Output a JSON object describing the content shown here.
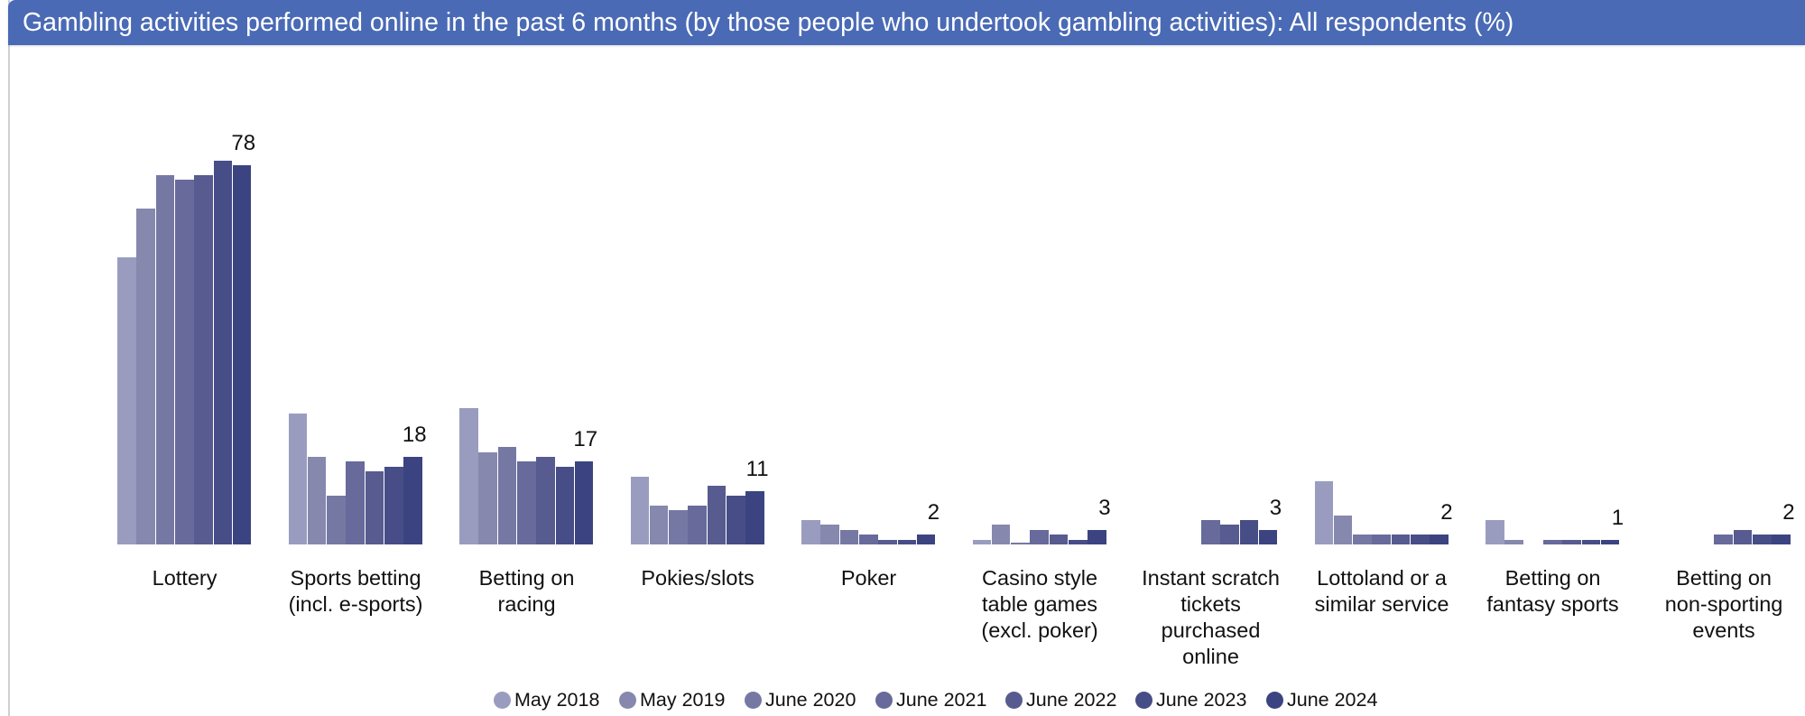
{
  "header": {
    "title": "Gambling activities performed online in the past 6 months (by those people who undertook gambling activities): All respondents (%)",
    "color": "#4a6ab5"
  },
  "legend": {
    "items": [
      {
        "label": "May 2018",
        "color": "#9a9cbf"
      },
      {
        "label": "May 2019",
        "color": "#8688ae"
      },
      {
        "label": "June 2020",
        "color": "#7678a4"
      },
      {
        "label": "June 2021",
        "color": "#676a9a"
      },
      {
        "label": "June 2022",
        "color": "#575b8f"
      },
      {
        "label": "June 2023",
        "color": "#474d86"
      },
      {
        "label": "June 2024",
        "color": "#3b4480"
      }
    ]
  },
  "chart_data": {
    "type": "bar",
    "title": "Gambling activities performed online in the past 6 months (by those people who undertook gambling activities): All respondents (%)",
    "xlabel": "",
    "ylabel": "%",
    "ylim": [
      0,
      80
    ],
    "grid": false,
    "legend_position": "bottom",
    "categories": [
      "Lottery",
      "Sports betting (incl. e-sports)",
      "Betting on racing",
      "Pokies/slots",
      "Poker",
      "Casino style table games (excl. poker)",
      "Instant scratch tickets purchased online",
      "Lottoland or a similar service",
      "Betting on fantasy sports",
      "Betting on non-sporting events"
    ],
    "category_lines": [
      [
        "Lottery"
      ],
      [
        "Sports betting",
        "(incl. e-sports)"
      ],
      [
        "Betting on",
        "racing"
      ],
      [
        "Pokies/slots"
      ],
      [
        "Poker"
      ],
      [
        "Casino style",
        "table games",
        "(excl. poker)"
      ],
      [
        "Instant scratch",
        "tickets",
        "purchased",
        "online"
      ],
      [
        "Lottoland or a",
        "similar service"
      ],
      [
        "Betting on",
        "fantasy sports"
      ],
      [
        "Betting on",
        "non-sporting",
        "events"
      ]
    ],
    "series": [
      {
        "name": "May 2018",
        "values": [
          59,
          27,
          28,
          14,
          5,
          1,
          null,
          13,
          5,
          null
        ]
      },
      {
        "name": "May 2019",
        "values": [
          69,
          18,
          19,
          8,
          4,
          4,
          null,
          6,
          1,
          null
        ]
      },
      {
        "name": "June 2020",
        "values": [
          76,
          10,
          20,
          7,
          3,
          0,
          null,
          2,
          null,
          null
        ]
      },
      {
        "name": "June 2021",
        "values": [
          75,
          17,
          17,
          8,
          2,
          3,
          5,
          2,
          1,
          2
        ]
      },
      {
        "name": "June 2022",
        "values": [
          76,
          15,
          18,
          12,
          1,
          2,
          4,
          2,
          1,
          3
        ]
      },
      {
        "name": "June 2023",
        "values": [
          79,
          16,
          16,
          10,
          1,
          1,
          5,
          2,
          1,
          2
        ]
      },
      {
        "name": "June 2024",
        "values": [
          78,
          18,
          17,
          11,
          2,
          3,
          3,
          2,
          1,
          2
        ]
      }
    ],
    "data_labels": {
      "series": "June 2024",
      "values": [
        "78",
        "18",
        "17",
        "11",
        "2",
        "3",
        "3",
        "2",
        "1",
        "2"
      ]
    }
  }
}
